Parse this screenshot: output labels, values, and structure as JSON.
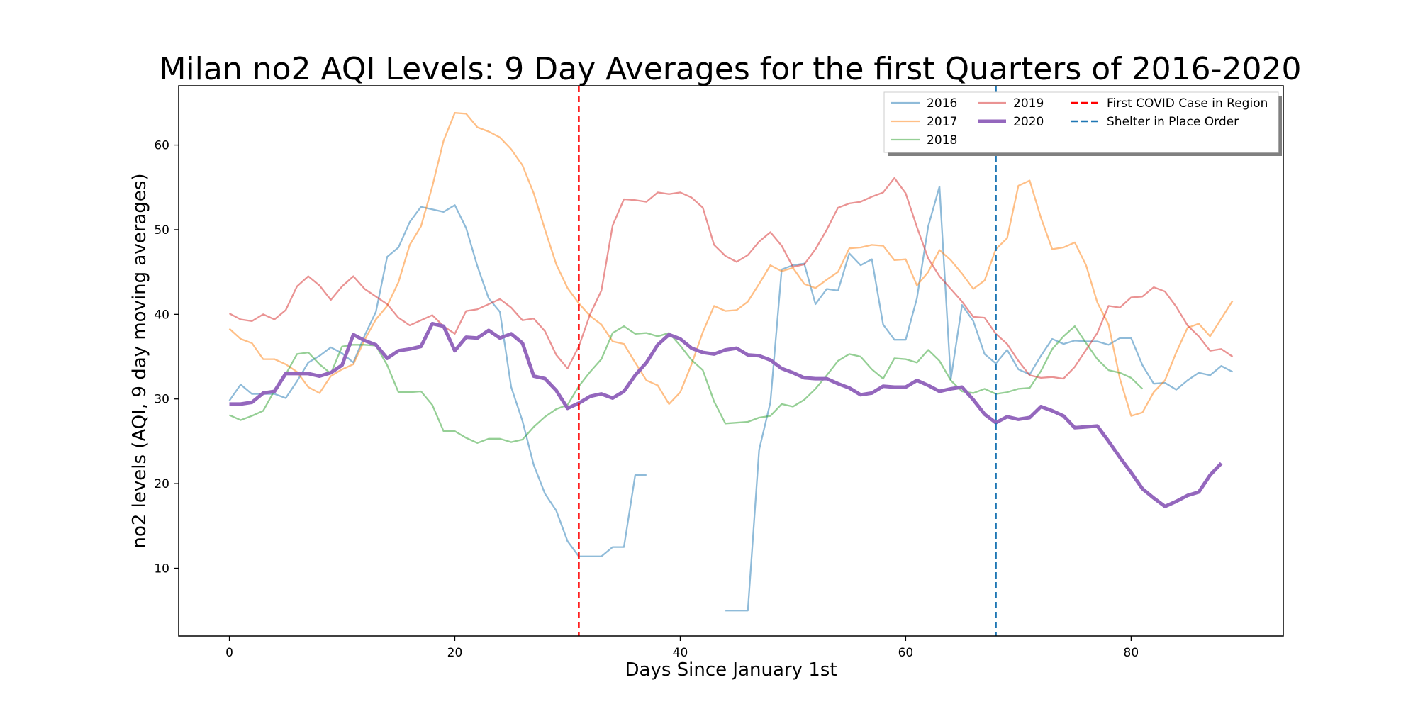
{
  "chart_data": {
    "type": "line",
    "title": "Milan no2 AQI Levels: 9 Day Averages for the first Quarters of 2016-2020",
    "xlabel": "Days Since January 1st",
    "ylabel": "no2 levels (AQI, 9 day moving averages)",
    "xlim": [
      -4.5,
      93.5
    ],
    "ylim": [
      2,
      67
    ],
    "xticks": [
      0,
      20,
      40,
      60,
      80
    ],
    "yticks": [
      10,
      20,
      30,
      40,
      50,
      60
    ],
    "grid": false,
    "legend_position": "top-right",
    "series": [
      {
        "name": "2016",
        "color": "#1f77b4",
        "segments": [
          {
            "x_start": 0,
            "values": [
              29.8,
              31.7,
              30.6,
              30.6,
              30.6,
              30.1,
              32.1,
              34.3,
              35.1,
              36.1,
              35.4,
              34.3,
              37.5,
              40.3,
              46.8,
              47.9,
              50.9,
              52.7,
              52.4,
              52.1,
              52.9,
              50.2,
              45.7,
              41.9,
              40.3,
              31.4,
              27.4,
              22.2,
              18.8,
              16.8,
              13.2,
              11.4,
              11.4,
              11.4,
              12.5,
              12.5,
              21.0,
              21.0
            ]
          },
          {
            "x_start": 44,
            "values": [
              5.0,
              5.0,
              5.0,
              24.0,
              29.6,
              45.3,
              45.8,
              46.0,
              41.2,
              43.0,
              42.8,
              47.2,
              45.8,
              46.5,
              38.8,
              37.0,
              37.0,
              41.9,
              50.4,
              55.1,
              32.3,
              41.1,
              39.2,
              35.3,
              34.2,
              35.8,
              33.5,
              32.9,
              35.1,
              37.1,
              36.5,
              36.9,
              36.8,
              36.8,
              36.4,
              37.2,
              37.2,
              34.0,
              31.8,
              31.9,
              31.1,
              32.2,
              33.1,
              32.8,
              33.9,
              33.2
            ]
          }
        ]
      },
      {
        "name": "2017",
        "color": "#ff7f0e",
        "segments": [
          {
            "x_start": 0,
            "values": [
              38.3,
              37.1,
              36.6,
              34.7,
              34.7,
              34.1,
              33.2,
              31.4,
              30.7,
              32.7,
              33.5,
              34.1,
              37.0,
              39.4,
              41.0,
              43.8,
              48.2,
              50.4,
              55.1,
              60.5,
              63.8,
              63.7,
              62.1,
              61.6,
              60.9,
              59.5,
              57.6,
              54.3,
              50.0,
              45.9,
              43.1,
              41.3,
              39.8,
              38.8,
              36.8,
              36.5,
              34.3,
              32.2,
              31.6,
              29.4,
              30.8,
              34.1,
              37.9,
              41.0,
              40.4,
              40.5,
              41.5,
              43.6,
              45.8,
              45.1,
              45.5,
              43.6,
              43.1,
              44.1,
              45.0,
              47.8,
              47.9,
              48.2,
              48.1,
              46.4,
              46.5,
              43.4,
              45.0,
              47.6,
              46.4,
              44.8,
              43.0,
              44.0,
              47.7,
              49.0,
              55.2,
              55.8,
              51.4,
              47.7,
              47.9,
              48.5,
              45.8,
              41.4,
              38.8,
              32.4,
              28.0,
              28.4,
              30.8,
              32.2,
              35.5,
              38.4,
              38.9,
              37.4,
              39.5,
              41.6
            ]
          }
        ]
      },
      {
        "name": "2018",
        "color": "#2ca02c",
        "segments": [
          {
            "x_start": 0,
            "values": [
              28.1,
              27.5,
              28.0,
              28.6,
              31.0,
              32.9,
              35.3,
              35.5,
              34.1,
              33.0,
              36.2,
              36.4,
              36.4,
              36.3,
              34.0,
              30.8,
              30.8,
              30.9,
              29.3,
              26.2,
              26.2,
              25.4,
              24.8,
              25.3,
              25.3,
              24.9,
              25.2,
              26.7,
              27.9,
              28.8,
              29.3,
              31.5,
              33.2,
              34.7,
              37.8,
              38.6,
              37.7,
              37.8,
              37.4,
              37.8,
              36.3,
              34.6,
              33.4,
              29.7,
              27.1,
              27.2,
              27.3,
              27.8,
              28.0,
              29.4,
              29.1,
              29.9,
              31.2,
              32.8,
              34.5,
              35.3,
              35.0,
              33.5,
              32.4,
              34.8,
              34.7,
              34.3,
              35.8,
              34.5,
              32.2,
              30.9,
              30.7,
              31.2,
              30.6,
              30.8,
              31.2,
              31.3,
              33.3,
              35.9,
              37.4,
              38.6,
              36.6,
              34.7,
              33.4,
              33.1,
              32.5,
              31.2
            ]
          }
        ]
      },
      {
        "name": "2019",
        "color": "#d62728",
        "segments": [
          {
            "x_start": 0,
            "values": [
              40.1,
              39.4,
              39.2,
              40.0,
              39.4,
              40.5,
              43.3,
              44.5,
              43.4,
              41.7,
              43.3,
              44.5,
              43.0,
              42.1,
              41.2,
              39.6,
              38.7,
              39.3,
              39.9,
              38.6,
              37.7,
              40.4,
              40.6,
              41.2,
              41.8,
              40.8,
              39.3,
              39.5,
              38.0,
              35.2,
              33.6,
              36.2,
              40.0,
              42.8,
              50.5,
              53.6,
              53.5,
              53.3,
              54.4,
              54.2,
              54.4,
              53.8,
              52.6,
              48.2,
              46.9,
              46.2,
              47.0,
              48.6,
              49.7,
              48.1,
              45.6,
              45.9,
              47.7,
              50.0,
              52.6,
              53.1,
              53.3,
              53.9,
              54.4,
              56.1,
              54.3,
              50.3,
              46.6,
              44.5,
              43.0,
              41.5,
              39.7,
              39.6,
              37.7,
              36.5,
              34.5,
              32.8,
              32.5,
              32.6,
              32.4,
              33.8,
              35.8,
              37.8,
              41.0,
              40.8,
              42.0,
              42.1,
              43.2,
              42.7,
              40.9,
              38.7,
              37.4,
              35.7,
              35.9,
              35.0
            ]
          }
        ]
      },
      {
        "name": "2020",
        "color": "#9467bd",
        "bold": true,
        "segments": [
          {
            "x_start": 0,
            "values": [
              29.4,
              29.4,
              29.6,
              30.7,
              30.9,
              33.0,
              33.0,
              33.0,
              32.7,
              33.1,
              34.0,
              37.6,
              36.9,
              36.4,
              34.8,
              35.7,
              35.9,
              36.2,
              38.9,
              38.6,
              35.7,
              37.3,
              37.2,
              38.1,
              37.2,
              37.7,
              36.6,
              32.7,
              32.4,
              31.0,
              28.9,
              29.5,
              30.3,
              30.6,
              30.1,
              30.9,
              32.8,
              34.3,
              36.4,
              37.6,
              37.1,
              36.0,
              35.5,
              35.3,
              35.8,
              36.0,
              35.2,
              35.1,
              34.6,
              33.6,
              33.1,
              32.5,
              32.4,
              32.4,
              31.8,
              31.3,
              30.5,
              30.7,
              31.5,
              31.4,
              31.4,
              32.2,
              31.6,
              30.9,
              31.2,
              31.4,
              29.9,
              28.2,
              27.2,
              27.9,
              27.6,
              27.8,
              29.1,
              28.6,
              28.0,
              26.6,
              26.7,
              26.8,
              25.0,
              23.1,
              21.3,
              19.4,
              18.3,
              17.3,
              17.9,
              18.6,
              19.0,
              21.0,
              22.4
            ]
          }
        ]
      }
    ],
    "reference_lines": [
      {
        "name": "First COVID Case in Region",
        "x": 31,
        "color": "#ff0000"
      },
      {
        "name": "Shelter in Place Order",
        "x": 68,
        "color": "#1f77b4"
      }
    ]
  }
}
